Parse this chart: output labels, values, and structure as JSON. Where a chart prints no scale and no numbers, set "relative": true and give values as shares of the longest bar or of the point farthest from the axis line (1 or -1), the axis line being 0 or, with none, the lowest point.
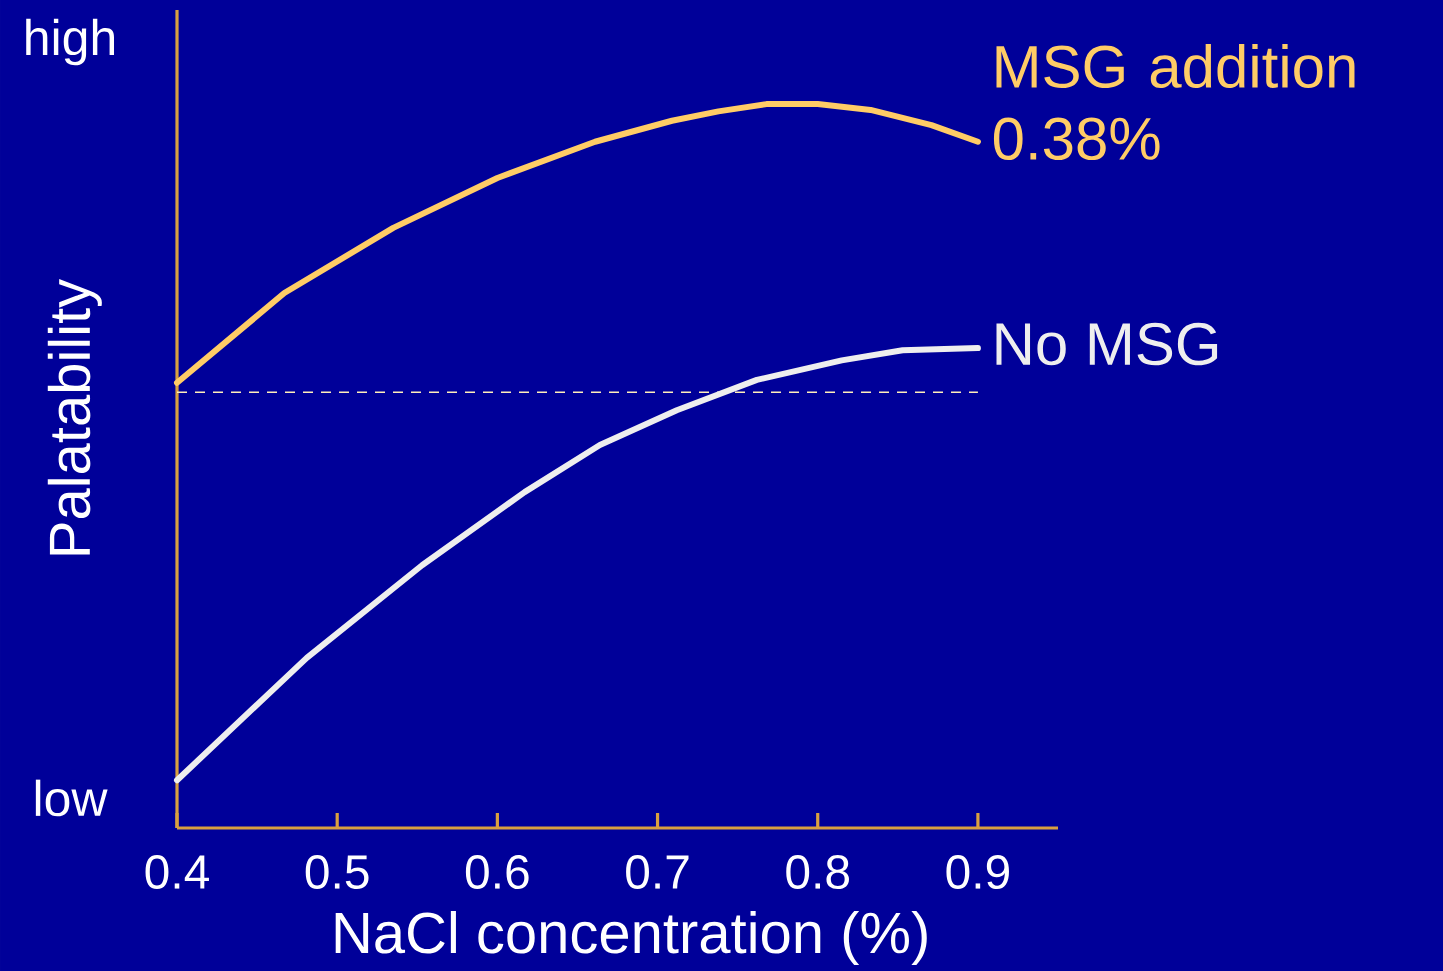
{
  "chart_data": {
    "type": "line",
    "relative": true,
    "xlabel": "NaCl concentration (%)",
    "ylabel": "Palatability",
    "xlim": [
      0.4,
      0.95
    ],
    "xticks": [
      0.4,
      0.5,
      0.6,
      0.7,
      0.8,
      0.9
    ],
    "annotations": [
      "high",
      "low"
    ],
    "series": [
      {
        "name": "MSG addition 0.38%",
        "color": "#ffcc66",
        "x": [
          0.4,
          0.467,
          0.535,
          0.6,
          0.661,
          0.709,
          0.738,
          0.768,
          0.8,
          0.833,
          0.871,
          0.9
        ],
        "values": [
          0.615,
          0.739,
          0.829,
          0.898,
          0.948,
          0.977,
          0.99,
          1,
          1,
          0.992,
          0.971,
          0.948
        ]
      },
      {
        "name": "No MSG",
        "color": "#eeeeee",
        "x": [
          0.4,
          0.481,
          0.553,
          0.617,
          0.664,
          0.712,
          0.762,
          0.815,
          0.853,
          0.9
        ],
        "values": [
          0.066,
          0.235,
          0.363,
          0.464,
          0.529,
          0.577,
          0.619,
          0.646,
          0.66,
          0.663
        ]
      }
    ],
    "ref_lines": [
      {
        "axis": "y",
        "value": 0.602,
        "color": "#ffeebb",
        "line_style": "dashed"
      }
    ]
  }
}
